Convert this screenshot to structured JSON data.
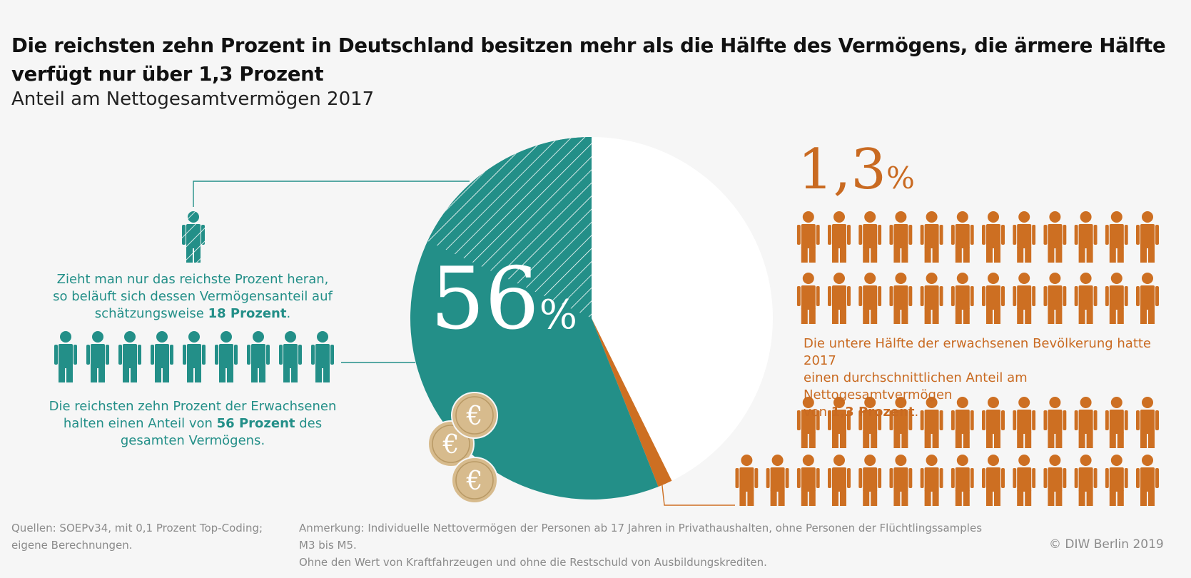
{
  "title": "Die reichsten zehn Prozent in Deutschland besitzen mehr als die Hälfte des Vermögens, die ärmere Hälfte verfügt nur über 1,3 Prozent",
  "subtitle": "Anteil am Nettogesamtvermögen 2017",
  "colors": {
    "teal": "#238f88",
    "orange": "#cd6f22",
    "white": "#ffffff",
    "coin": "#d7bb8d",
    "background": "#f6f6f6"
  },
  "icons": [
    "person-icon",
    "euro-coin-icon",
    "hatch-pattern"
  ],
  "chart_data": {
    "type": "pie",
    "slices": [
      {
        "value": 56,
        "label": "56%",
        "color": "#238f88",
        "hatched_part": 18
      },
      {
        "value": 1.3,
        "label": "1,3%",
        "color": "#cd6f22"
      },
      {
        "value": 42.7,
        "color": "#ffffff"
      }
    ]
  },
  "left": {
    "top_person_count": 1,
    "annotation_top": {
      "pre": "Zieht man nur das reichste Prozent heran,",
      "line2": "so beläuft sich dessen Vermögensanteil auf",
      "line3_pre": "schätzungsweise ",
      "line3_bold": "18 Prozent",
      "line3_post": "."
    },
    "people_count": 9,
    "annotation_bottom": {
      "line1": "Die reichsten zehn Prozent der Erwachsenen",
      "line2_pre": "halten einen Anteil von ",
      "line2_bold": "56 Prozent",
      "line2_post": " des",
      "line3": "gesamten Vermögens."
    }
  },
  "pie_labels": {
    "big_number": "56",
    "big_unit": "%"
  },
  "right": {
    "big_number": "1,3",
    "big_unit": "%",
    "people_rows": [
      12,
      12,
      12,
      14
    ],
    "annotation": {
      "line1": "Die untere Hälfte der erwachsenen Bevölkerung hatte 2017",
      "line2": "einen durchschnittlichen Anteil am Nettogesamtvermögen",
      "line3_pre": "von ",
      "line3_bold": "1,3 Prozent",
      "line3_post": "."
    }
  },
  "footer": {
    "sources_line1": "Quellen: SOEPv34, mit 0,1 Prozent Top-Coding;",
    "sources_line2": "eigene Berechnungen.",
    "note_line1": "Anmerkung: Individuelle Nettovermögen der Personen ab 17 Jahren in Privathaushalten, ohne Personen der Flüchtlingssamples M3 bis M5.",
    "note_line2": "Ohne den Wert von Kraftfahrzeugen und ohne die Restschuld von Ausbildungskrediten.",
    "copyright": "© DIW Berlin 2019"
  }
}
